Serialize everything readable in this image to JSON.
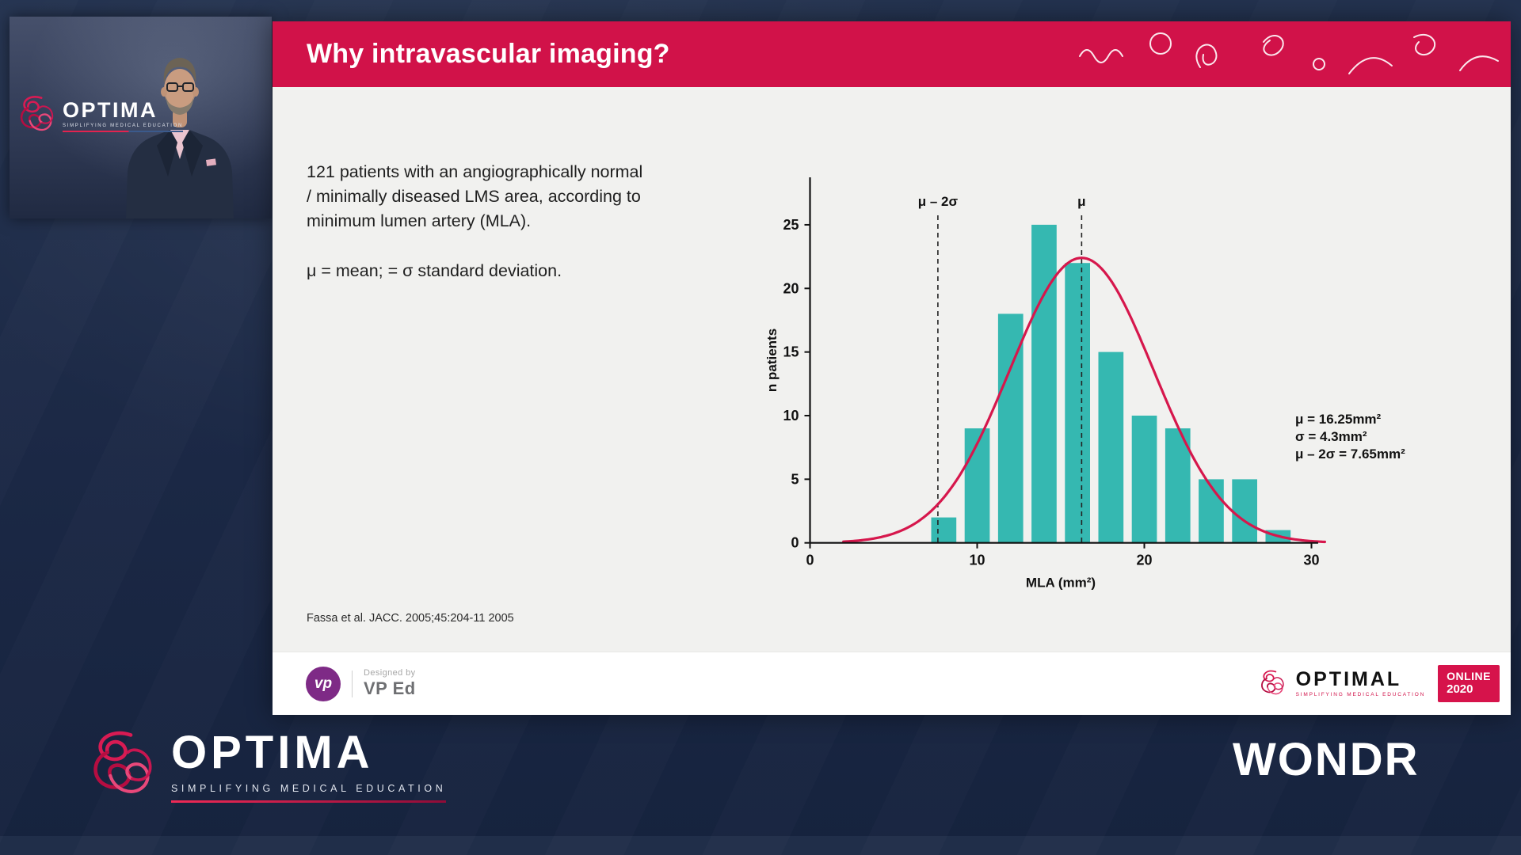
{
  "slide": {
    "title": "Why intravascular imaging?",
    "body": {
      "paragraph1": "121 patients with an angiographically normal / minimally diseased LMS area, according to minimum lumen artery (MLA).",
      "paragraph2": "μ = mean; = σ standard deviation."
    },
    "citation": "Fassa et al. JACC. 2005;45:204-11 2005",
    "footer": {
      "vp_monogram": "vp",
      "designed_by_label": "Designed by",
      "designer_name": "VP Ed",
      "optimal_wordmark": "OPTIMAL",
      "optimal_tagline": "SIMPLIFYING MEDICAL EDUCATION",
      "online_line1": "ONLINE",
      "online_line2": "2020"
    }
  },
  "chart_data": {
    "type": "bar",
    "title": "",
    "xlabel": "MLA (mm²)",
    "ylabel": "n patients",
    "xlim": [
      0,
      30
    ],
    "ylim": [
      0,
      25
    ],
    "xticks": [
      0,
      10,
      20,
      30
    ],
    "yticks": [
      0,
      5,
      10,
      15,
      20,
      25
    ],
    "bin_centers": [
      8,
      10,
      12,
      14,
      16,
      18,
      20,
      22,
      24,
      26,
      28
    ],
    "values": [
      2,
      9,
      18,
      25,
      22,
      15,
      10,
      9,
      5,
      5,
      1
    ],
    "bar_width": 1.5,
    "bar_color": "#35b8b1",
    "grid": false,
    "curve": {
      "type": "normal",
      "mean": 16.25,
      "sd": 4.3,
      "amplitude": 22.4,
      "x_start": 2,
      "x_end": 30.8,
      "color": "#d6174c"
    },
    "reference_lines": [
      {
        "x": 7.65,
        "label": "μ – 2σ"
      },
      {
        "x": 16.25,
        "label": "μ"
      }
    ],
    "annotations": [
      "μ = 16.25mm²",
      "σ = 4.3mm²",
      "μ – 2σ = 7.65mm²"
    ]
  },
  "branding": {
    "optima_wordmark": "OPTIMA",
    "optima_tagline": "SIMPLIFYING MEDICAL EDUCATION",
    "wondr_wordmark": "WONDR"
  },
  "colors": {
    "slide_accent": "#d11249",
    "bar_teal": "#35b8b1",
    "curve_red": "#d6174c",
    "background_navy": "#1c2a48"
  }
}
